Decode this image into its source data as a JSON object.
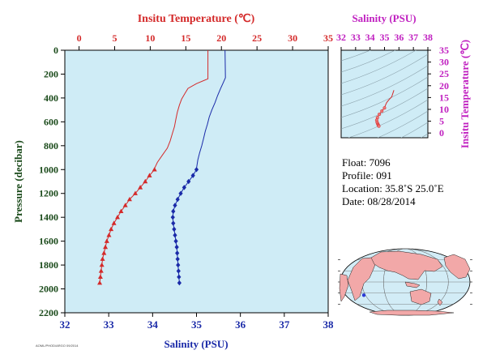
{
  "chart_data": [
    {
      "type": "line",
      "title": "",
      "ylabel": "Pressure (decibar)",
      "ylim": [
        2200,
        0
      ],
      "yticks": [
        0,
        200,
        400,
        600,
        800,
        1000,
        1200,
        1400,
        1600,
        1800,
        2000,
        2200
      ],
      "top_axis": {
        "label": "Insitu Temperature (℃)",
        "range": [
          -2,
          35
        ],
        "ticks": [
          0,
          5,
          10,
          15,
          20,
          25,
          30,
          35
        ],
        "color": "#d42a2a"
      },
      "bottom_axis": {
        "label": "Salinity (PSU)",
        "range": [
          32,
          38
        ],
        "ticks": [
          32,
          33,
          34,
          35,
          36,
          37,
          38
        ],
        "color": "#1a2aa8"
      },
      "background": "#cfecf6",
      "series": [
        {
          "axis": "top",
          "color": "#d42a2a",
          "marker": "triangle",
          "line_points": [
            {
              "x": 18.1,
              "y": 0
            },
            {
              "x": 18.1,
              "y": 240
            },
            {
              "x": 16.5,
              "y": 280
            },
            {
              "x": 15.3,
              "y": 320
            },
            {
              "x": 14.9,
              "y": 360
            },
            {
              "x": 14.4,
              "y": 410
            },
            {
              "x": 14.1,
              "y": 460
            },
            {
              "x": 13.8,
              "y": 520
            },
            {
              "x": 13.6,
              "y": 580
            },
            {
              "x": 13.4,
              "y": 640
            },
            {
              "x": 13.1,
              "y": 700
            },
            {
              "x": 12.8,
              "y": 760
            },
            {
              "x": 12.4,
              "y": 820
            },
            {
              "x": 11.7,
              "y": 880
            },
            {
              "x": 11.0,
              "y": 940
            },
            {
              "x": 10.6,
              "y": 990
            }
          ],
          "marker_points": [
            {
              "x": 10.6,
              "y": 1000
            },
            {
              "x": 9.9,
              "y": 1050
            },
            {
              "x": 9.3,
              "y": 1100
            },
            {
              "x": 8.6,
              "y": 1150
            },
            {
              "x": 7.9,
              "y": 1200
            },
            {
              "x": 7.1,
              "y": 1250
            },
            {
              "x": 6.5,
              "y": 1300
            },
            {
              "x": 5.9,
              "y": 1350
            },
            {
              "x": 5.4,
              "y": 1400
            },
            {
              "x": 4.9,
              "y": 1450
            },
            {
              "x": 4.5,
              "y": 1500
            },
            {
              "x": 4.2,
              "y": 1550
            },
            {
              "x": 3.9,
              "y": 1600
            },
            {
              "x": 3.7,
              "y": 1650
            },
            {
              "x": 3.5,
              "y": 1700
            },
            {
              "x": 3.3,
              "y": 1750
            },
            {
              "x": 3.2,
              "y": 1800
            },
            {
              "x": 3.1,
              "y": 1850
            },
            {
              "x": 3.0,
              "y": 1900
            },
            {
              "x": 2.9,
              "y": 1950
            }
          ]
        },
        {
          "axis": "bottom",
          "color": "#1a2aa8",
          "marker": "diamond",
          "line_points": [
            {
              "x": 35.65,
              "y": 0
            },
            {
              "x": 35.66,
              "y": 230
            },
            {
              "x": 35.6,
              "y": 280
            },
            {
              "x": 35.55,
              "y": 320
            },
            {
              "x": 35.48,
              "y": 380
            },
            {
              "x": 35.42,
              "y": 440
            },
            {
              "x": 35.35,
              "y": 500
            },
            {
              "x": 35.29,
              "y": 560
            },
            {
              "x": 35.25,
              "y": 620
            },
            {
              "x": 35.2,
              "y": 680
            },
            {
              "x": 35.16,
              "y": 740
            },
            {
              "x": 35.12,
              "y": 800
            },
            {
              "x": 35.07,
              "y": 860
            },
            {
              "x": 35.03,
              "y": 920
            },
            {
              "x": 35.0,
              "y": 990
            }
          ],
          "marker_points": [
            {
              "x": 35.0,
              "y": 1000
            },
            {
              "x": 34.92,
              "y": 1050
            },
            {
              "x": 34.82,
              "y": 1100
            },
            {
              "x": 34.72,
              "y": 1150
            },
            {
              "x": 34.64,
              "y": 1200
            },
            {
              "x": 34.57,
              "y": 1250
            },
            {
              "x": 34.51,
              "y": 1300
            },
            {
              "x": 34.47,
              "y": 1350
            },
            {
              "x": 34.46,
              "y": 1400
            },
            {
              "x": 34.47,
              "y": 1450
            },
            {
              "x": 34.49,
              "y": 1500
            },
            {
              "x": 34.51,
              "y": 1550
            },
            {
              "x": 34.53,
              "y": 1600
            },
            {
              "x": 34.55,
              "y": 1650
            },
            {
              "x": 34.56,
              "y": 1700
            },
            {
              "x": 34.57,
              "y": 1750
            },
            {
              "x": 34.58,
              "y": 1800
            },
            {
              "x": 34.59,
              "y": 1850
            },
            {
              "x": 34.6,
              "y": 1900
            },
            {
              "x": 34.61,
              "y": 1950
            }
          ]
        }
      ]
    },
    {
      "type": "scatter",
      "title": "",
      "xlabel": "Salinity (PSU)",
      "ylabel": "Insitu Temperature (℃)",
      "xlim": [
        32,
        38
      ],
      "ylim": [
        -2,
        35
      ],
      "xticks": [
        32,
        33,
        34,
        35,
        36,
        37,
        38
      ],
      "yticks": [
        0,
        5,
        10,
        15,
        20,
        25,
        30,
        35
      ],
      "axis_color": "#c020c0",
      "background": "#cfecf6",
      "series": [
        {
          "color": "#d42a2a",
          "line_points": [
            {
              "x": 35.65,
              "y": 18.1
            },
            {
              "x": 35.5,
              "y": 15.3
            },
            {
              "x": 35.3,
              "y": 14.0
            },
            {
              "x": 35.15,
              "y": 12.9
            },
            {
              "x": 35.05,
              "y": 11.5
            },
            {
              "x": 35.0,
              "y": 10.6
            }
          ],
          "marker_points": [
            {
              "x": 35.0,
              "y": 10.6
            },
            {
              "x": 34.82,
              "y": 9.3
            },
            {
              "x": 34.64,
              "y": 7.9
            },
            {
              "x": 34.51,
              "y": 6.5
            },
            {
              "x": 34.46,
              "y": 5.4
            },
            {
              "x": 34.49,
              "y": 4.5
            },
            {
              "x": 34.53,
              "y": 3.9
            },
            {
              "x": 34.56,
              "y": 3.5
            },
            {
              "x": 34.58,
              "y": 3.2
            },
            {
              "x": 34.61,
              "y": 2.9
            }
          ]
        }
      ]
    }
  ],
  "info": {
    "float": "Float:  7096",
    "profile": "Profile:  091",
    "location": "Location:  35.8˚S  25.0˚E",
    "date": "Date:  08/28/2014"
  },
  "map": {
    "ocean_color": "#d2ecf6",
    "land_color": "#f2a8a8",
    "marker": {
      "lon": 25.0,
      "lat": -35.8,
      "color": "#2a3ad8"
    }
  },
  "stamp": "AOML/PHOD/ARGO 09/2014"
}
